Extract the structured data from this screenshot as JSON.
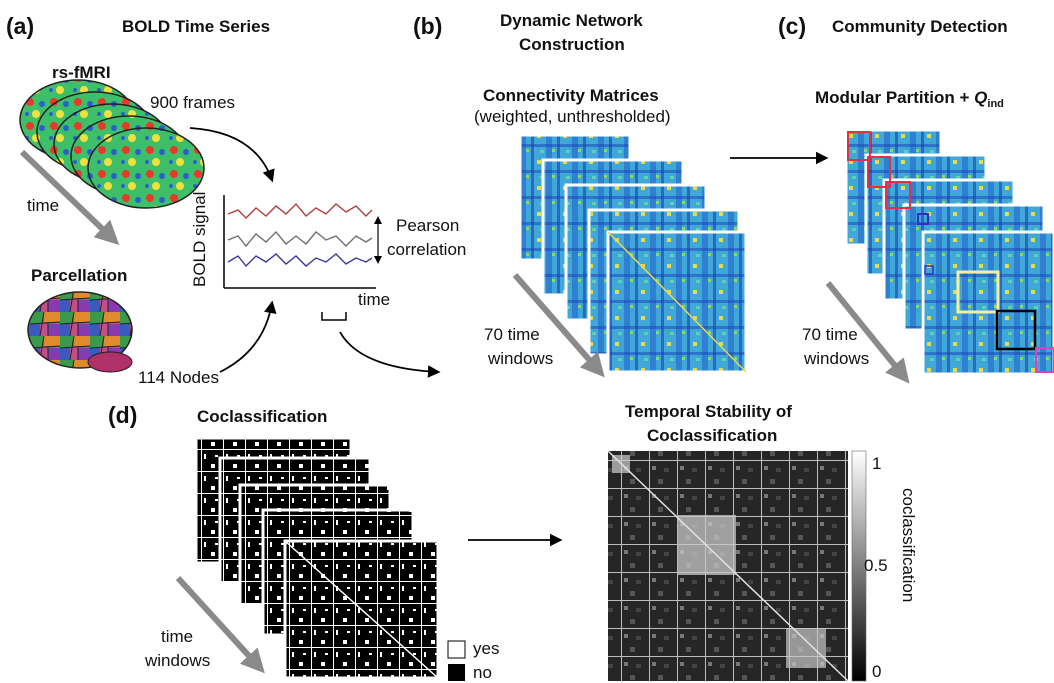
{
  "colors": {
    "jet_dark": "#1a3fb8",
    "jet_mid": "#3fa8d8",
    "jet_hi": "#e8d84a",
    "community_red": "#e0304a",
    "community_yellow": "#f2f0a0",
    "community_pink": "#e040c0",
    "arrow_gray": "#8a8a8a",
    "trace_red": "#b04040",
    "trace_gray": "#707070",
    "trace_blue": "#3a3a9a"
  },
  "panel_a": {
    "label": "(a)",
    "title": "BOLD Time Series",
    "rsfmri": "rs-fMRI",
    "frames": "900 frames",
    "time_label": "time",
    "parcellation": "Parcellation",
    "nodes": "114 Nodes",
    "ylabel": "BOLD signal",
    "xlabel": "time",
    "pearson_1": "Pearson",
    "pearson_2": "correlation"
  },
  "panel_b": {
    "label": "(b)",
    "title_1": "Dynamic Network",
    "title_2": "Construction",
    "matrices": "Connectivity Matrices",
    "matrices_sub": "(weighted, unthresholded)",
    "windows_1": "70 time",
    "windows_2": "windows"
  },
  "panel_c": {
    "label": "(c)",
    "title": "Community Detection",
    "partition": "Modular Partition + ",
    "q": "Q",
    "q_sub": "ind",
    "windows_1": "70 time",
    "windows_2": "windows"
  },
  "panel_d": {
    "label": "(d)",
    "title": "Coclassification",
    "windows_1": "time",
    "windows_2": "windows",
    "legend_yes": "yes",
    "legend_no": "no",
    "stability_1": "Temporal Stability of",
    "stability_2": "Coclassification",
    "colorbar_label": "coclassification",
    "tick_1": "1",
    "tick_05": "0.5",
    "tick_0": "0"
  }
}
